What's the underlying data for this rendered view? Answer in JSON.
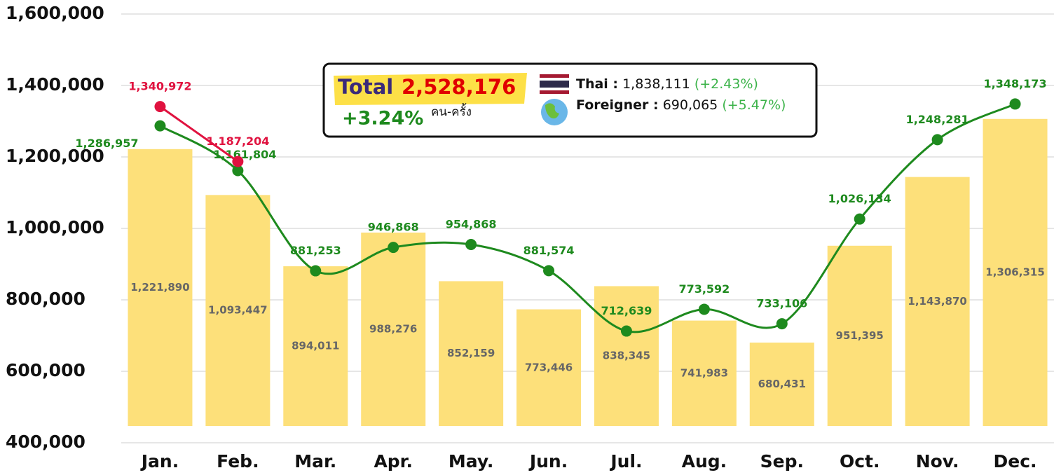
{
  "chart_data": {
    "type": "bar_line",
    "categories": [
      "Jan.",
      "Feb.",
      "Mar.",
      "Apr.",
      "May.",
      "Jun.",
      "Jul.",
      "Aug.",
      "Sep.",
      "Oct.",
      "Nov.",
      "Dec."
    ],
    "series": [
      {
        "kind": "bar",
        "color": "#fde07a",
        "values": [
          1221890,
          1093447,
          894011,
          988276,
          852159,
          773446,
          838345,
          741983,
          680431,
          951395,
          1143870,
          1306315
        ],
        "value_labels": [
          "1,221,890",
          "1,093,447",
          "894,011",
          "988,276",
          "852,159",
          "773,446",
          "838,345",
          "741,983",
          "680,431",
          "951,395",
          "1,143,870",
          "1,306,315"
        ]
      },
      {
        "kind": "line",
        "color": "#1e8a1e",
        "values": [
          1286957,
          1161804,
          881253,
          946868,
          954868,
          881574,
          712639,
          773592,
          733106,
          1026134,
          1248281,
          1348173
        ],
        "value_labels": [
          "1,286,957",
          "1,161,804",
          "881,253",
          "946,868",
          "954,868",
          "881,574",
          "712,639",
          "773,592",
          "733,106",
          "1,026,134",
          "1,248,281",
          "1,348,173"
        ]
      },
      {
        "kind": "line",
        "color": "#e0123f",
        "values": [
          1340972,
          1187204,
          null,
          null,
          null,
          null,
          null,
          null,
          null,
          null,
          null,
          null
        ],
        "value_labels": [
          "1,340,972",
          "1,187,204",
          null,
          null,
          null,
          null,
          null,
          null,
          null,
          null,
          null,
          null
        ]
      }
    ],
    "ylim": [
      400000,
      1600000
    ],
    "yticks": [
      {
        "value": 400000,
        "label": "400,000"
      },
      {
        "value": 600000,
        "label": "600,000"
      },
      {
        "value": 800000,
        "label": "800,000"
      },
      {
        "value": 1000000,
        "label": "1,000,000"
      },
      {
        "value": 1200000,
        "label": "1,200,000"
      },
      {
        "value": 1400000,
        "label": "1,400,000"
      },
      {
        "value": 1600000,
        "label": "1,600,000"
      }
    ],
    "grid": true,
    "annotation": {
      "total_label": "Total",
      "total": "2,528,176",
      "change": "+3.24%",
      "unit": "คน-ครั้ง",
      "thai_label": "Thai :",
      "thai": "1,838,111",
      "thai_change": "(+2.43%)",
      "foreign_label": "Foreigner :",
      "foreign": "690,065",
      "foreign_change": "(+5.47%)"
    }
  }
}
